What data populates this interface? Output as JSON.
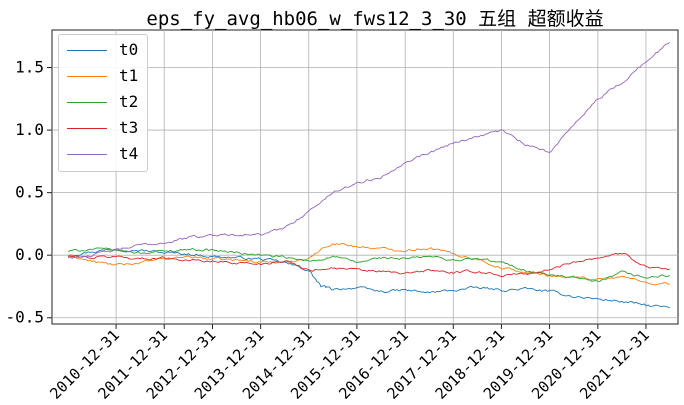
{
  "chart_data": {
    "type": "line",
    "title": "eps_fy_avg_hb06_w_fws12_3_30 五组 超额收益",
    "xlabel": "",
    "ylabel": "",
    "ylim": [
      -0.55,
      1.8
    ],
    "xlim": [
      "2009-09-01",
      "2022-08-31"
    ],
    "grid": true,
    "legend_position": "top-left",
    "y_ticks": [
      "-0.5",
      "0.0",
      "0.5",
      "1.0",
      "1.5"
    ],
    "y_tick_values": [
      -0.5,
      0.0,
      0.5,
      1.0,
      1.5
    ],
    "x_ticks": [
      "2010-12-31",
      "2011-12-31",
      "2012-12-31",
      "2013-12-31",
      "2014-12-31",
      "2015-12-31",
      "2016-12-31",
      "2017-12-31",
      "2018-12-31",
      "2019-12-31",
      "2020-12-31",
      "2021-12-31"
    ],
    "series": [
      {
        "name": "t0",
        "color": "#1f77b4",
        "points": [
          [
            "2010-01-01",
            0.0
          ],
          [
            "2010-07-01",
            0.03
          ],
          [
            "2011-01-01",
            0.05
          ],
          [
            "2011-07-01",
            0.04
          ],
          [
            "2012-01-01",
            0.02
          ],
          [
            "2012-07-01",
            0.01
          ],
          [
            "2013-01-01",
            -0.01
          ],
          [
            "2013-07-01",
            -0.02
          ],
          [
            "2014-01-01",
            -0.03
          ],
          [
            "2014-07-01",
            -0.06
          ],
          [
            "2015-01-01",
            -0.12
          ],
          [
            "2015-04-01",
            -0.25
          ],
          [
            "2015-07-01",
            -0.27
          ],
          [
            "2016-01-01",
            -0.26
          ],
          [
            "2016-07-01",
            -0.29
          ],
          [
            "2017-01-01",
            -0.28
          ],
          [
            "2017-07-01",
            -0.3
          ],
          [
            "2018-01-01",
            -0.28
          ],
          [
            "2018-07-01",
            -0.26
          ],
          [
            "2019-01-01",
            -0.28
          ],
          [
            "2019-07-01",
            -0.27
          ],
          [
            "2020-01-01",
            -0.29
          ],
          [
            "2020-07-01",
            -0.33
          ],
          [
            "2021-01-01",
            -0.35
          ],
          [
            "2021-07-01",
            -0.37
          ],
          [
            "2022-01-01",
            -0.4
          ],
          [
            "2022-06-30",
            -0.42
          ]
        ]
      },
      {
        "name": "t1",
        "color": "#ff7f0e",
        "points": [
          [
            "2010-01-01",
            0.0
          ],
          [
            "2010-07-01",
            -0.05
          ],
          [
            "2011-01-01",
            -0.08
          ],
          [
            "2011-07-01",
            -0.06
          ],
          [
            "2012-01-01",
            -0.03
          ],
          [
            "2012-07-01",
            -0.01
          ],
          [
            "2013-01-01",
            -0.03
          ],
          [
            "2013-07-01",
            -0.04
          ],
          [
            "2014-01-01",
            -0.05
          ],
          [
            "2014-07-01",
            -0.06
          ],
          [
            "2015-01-01",
            -0.02
          ],
          [
            "2015-07-01",
            0.1
          ],
          [
            "2016-01-01",
            0.07
          ],
          [
            "2016-07-01",
            0.05
          ],
          [
            "2017-01-01",
            0.04
          ],
          [
            "2017-07-01",
            0.06
          ],
          [
            "2018-01-01",
            0.01
          ],
          [
            "2018-07-01",
            -0.03
          ],
          [
            "2019-01-01",
            -0.1
          ],
          [
            "2019-07-01",
            -0.14
          ],
          [
            "2020-01-01",
            -0.16
          ],
          [
            "2020-07-01",
            -0.18
          ],
          [
            "2021-01-01",
            -0.19
          ],
          [
            "2021-07-01",
            -0.17
          ],
          [
            "2022-01-01",
            -0.22
          ],
          [
            "2022-06-30",
            -0.23
          ]
        ]
      },
      {
        "name": "t2",
        "color": "#2ca02c",
        "points": [
          [
            "2010-01-01",
            0.03
          ],
          [
            "2010-07-01",
            0.05
          ],
          [
            "2011-01-01",
            0.04
          ],
          [
            "2011-07-01",
            0.02
          ],
          [
            "2012-01-01",
            0.03
          ],
          [
            "2012-07-01",
            0.05
          ],
          [
            "2013-01-01",
            0.04
          ],
          [
            "2013-07-01",
            0.02
          ],
          [
            "2014-01-01",
            0.0
          ],
          [
            "2014-07-01",
            -0.02
          ],
          [
            "2015-01-01",
            -0.05
          ],
          [
            "2015-07-01",
            -0.01
          ],
          [
            "2016-01-01",
            -0.06
          ],
          [
            "2016-07-01",
            -0.02
          ],
          [
            "2017-01-01",
            -0.03
          ],
          [
            "2017-07-01",
            -0.01
          ],
          [
            "2018-01-01",
            -0.04
          ],
          [
            "2018-07-01",
            -0.03
          ],
          [
            "2019-01-01",
            -0.06
          ],
          [
            "2019-07-01",
            -0.12
          ],
          [
            "2020-01-01",
            -0.16
          ],
          [
            "2020-07-01",
            -0.18
          ],
          [
            "2021-01-01",
            -0.22
          ],
          [
            "2021-07-01",
            -0.14
          ],
          [
            "2022-01-01",
            -0.18
          ],
          [
            "2022-06-30",
            -0.16
          ]
        ]
      },
      {
        "name": "t3",
        "color": "#d62728",
        "points": [
          [
            "2010-01-01",
            -0.01
          ],
          [
            "2010-07-01",
            -0.02
          ],
          [
            "2011-01-01",
            -0.01
          ],
          [
            "2011-07-01",
            -0.03
          ],
          [
            "2012-01-01",
            -0.02
          ],
          [
            "2012-07-01",
            -0.04
          ],
          [
            "2013-01-01",
            -0.05
          ],
          [
            "2013-07-01",
            -0.06
          ],
          [
            "2014-01-01",
            -0.07
          ],
          [
            "2014-07-01",
            -0.04
          ],
          [
            "2015-01-01",
            -0.12
          ],
          [
            "2015-07-01",
            -0.1
          ],
          [
            "2016-01-01",
            -0.12
          ],
          [
            "2016-07-01",
            -0.13
          ],
          [
            "2017-01-01",
            -0.15
          ],
          [
            "2017-07-01",
            -0.12
          ],
          [
            "2018-01-01",
            -0.14
          ],
          [
            "2018-07-01",
            -0.13
          ],
          [
            "2019-01-01",
            -0.16
          ],
          [
            "2019-07-01",
            -0.15
          ],
          [
            "2020-01-01",
            -0.12
          ],
          [
            "2020-07-01",
            -0.05
          ],
          [
            "2021-01-01",
            -0.02
          ],
          [
            "2021-07-01",
            0.02
          ],
          [
            "2022-01-01",
            -0.09
          ],
          [
            "2022-06-30",
            -0.11
          ]
        ]
      },
      {
        "name": "t4",
        "color": "#9467bd",
        "points": [
          [
            "2010-01-01",
            -0.02
          ],
          [
            "2010-07-01",
            0.0
          ],
          [
            "2011-01-01",
            0.04
          ],
          [
            "2011-07-01",
            0.08
          ],
          [
            "2012-01-01",
            0.1
          ],
          [
            "2012-07-01",
            0.14
          ],
          [
            "2013-01-01",
            0.16
          ],
          [
            "2013-07-01",
            0.17
          ],
          [
            "2014-01-01",
            0.16
          ],
          [
            "2014-07-01",
            0.22
          ],
          [
            "2015-01-01",
            0.35
          ],
          [
            "2015-07-01",
            0.5
          ],
          [
            "2016-01-01",
            0.58
          ],
          [
            "2016-07-01",
            0.62
          ],
          [
            "2017-01-01",
            0.75
          ],
          [
            "2017-07-01",
            0.82
          ],
          [
            "2018-01-01",
            0.9
          ],
          [
            "2018-07-01",
            0.95
          ],
          [
            "2019-01-01",
            1.0
          ],
          [
            "2019-07-01",
            0.88
          ],
          [
            "2020-01-01",
            0.82
          ],
          [
            "2020-07-01",
            1.05
          ],
          [
            "2021-01-01",
            1.25
          ],
          [
            "2021-07-01",
            1.38
          ],
          [
            "2022-01-01",
            1.55
          ],
          [
            "2022-06-30",
            1.7
          ]
        ]
      }
    ]
  }
}
